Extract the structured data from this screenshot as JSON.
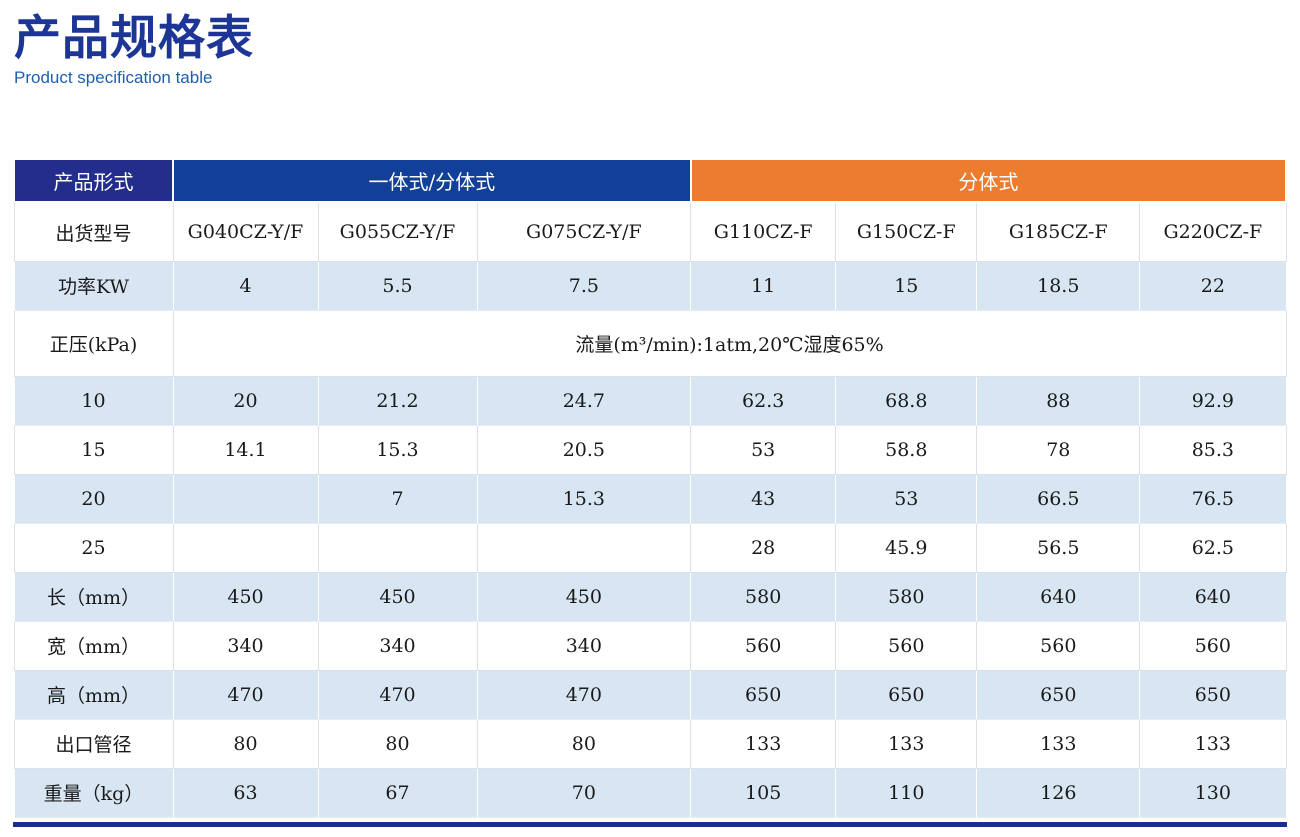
{
  "page": {
    "title": "产品规格表",
    "subtitle": "Product specification table"
  },
  "colors": {
    "title_navy": "#1d3695",
    "subtitle_blue": "#1e5fad",
    "header_navy": "#232e8c",
    "header_blue": "#123f97",
    "header_orange": "#ec7d2e",
    "row_alt_blue": "#d8e5f2",
    "bottom_bar_navy": "#1b2e8c"
  },
  "table": {
    "header": {
      "product_form_label": "产品形式",
      "group1_label": "一体式/分体式",
      "group2_label": "分体式"
    },
    "rows": [
      {
        "label": "出货型号",
        "values": [
          "G040CZ-Y/F",
          "G055CZ-Y/F",
          "G075CZ-Y/F",
          "G110CZ-F",
          "G150CZ-F",
          "G185CZ-F",
          "G220CZ-F"
        ]
      },
      {
        "label": "功率KW",
        "values": [
          "4",
          "5.5",
          "7.5",
          "11",
          "15",
          "18.5",
          "22"
        ]
      },
      {
        "label": "正压(kPa)",
        "span_text": "流量(m³/min):1atm,20℃湿度65%"
      },
      {
        "label": "10",
        "values": [
          "20",
          "21.2",
          "24.7",
          "62.3",
          "68.8",
          "88",
          "92.9"
        ]
      },
      {
        "label": "15",
        "values": [
          "14.1",
          "15.3",
          "20.5",
          "53",
          "58.8",
          "78",
          "85.3"
        ]
      },
      {
        "label": "20",
        "values": [
          "",
          "7",
          "15.3",
          "43",
          "53",
          "66.5",
          "76.5"
        ]
      },
      {
        "label": "25",
        "values": [
          "",
          "",
          "",
          "28",
          "45.9",
          "56.5",
          "62.5"
        ]
      },
      {
        "label": "长（mm）",
        "values": [
          "450",
          "450",
          "450",
          "580",
          "580",
          "640",
          "640"
        ]
      },
      {
        "label": "宽（mm）",
        "values": [
          "340",
          "340",
          "340",
          "560",
          "560",
          "560",
          "560"
        ]
      },
      {
        "label": "高（mm）",
        "values": [
          "470",
          "470",
          "470",
          "650",
          "650",
          "650",
          "650"
        ]
      },
      {
        "label": "出口管径",
        "values": [
          "80",
          "80",
          "80",
          "133",
          "133",
          "133",
          "133"
        ]
      },
      {
        "label": "重量（kg）",
        "values": [
          "63",
          "67",
          "70",
          "105",
          "110",
          "126",
          "130"
        ]
      }
    ]
  }
}
